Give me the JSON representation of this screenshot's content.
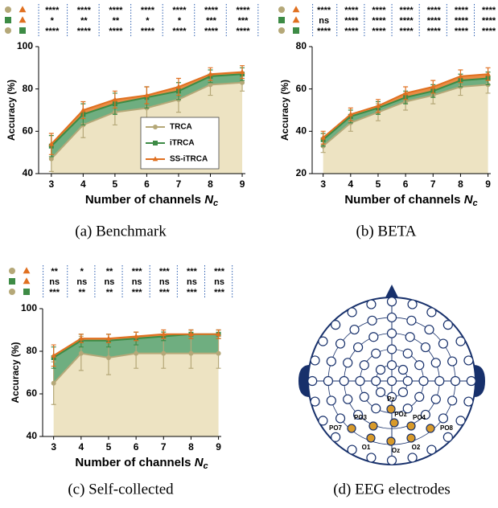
{
  "chart_data": [
    {
      "type": "line",
      "caption": "(a) Benchmark",
      "ylabel": "Accuracy (%)",
      "xlabel": "Number of channels",
      "xlabel_symbol": "N",
      "xlabel_subscript": "c",
      "x": [
        3,
        4,
        5,
        6,
        7,
        8,
        9
      ],
      "xlim": [
        2.6,
        9.1
      ],
      "xticks": [
        3,
        4,
        5,
        6,
        7,
        8,
        9
      ],
      "ylim": [
        40,
        100
      ],
      "yticks": [
        40,
        60,
        80,
        100
      ],
      "legend": "lower right",
      "series": [
        {
          "name": "TRCA",
          "color": "#b5a878",
          "marker": "circle",
          "values": [
            47,
            63,
            69,
            71,
            75,
            82,
            83
          ],
          "errors": [
            6,
            6,
            6,
            6,
            6,
            5,
            4
          ]
        },
        {
          "name": "iTRCA",
          "color": "#3d8b45",
          "marker": "square",
          "values": [
            53,
            68,
            73,
            76,
            79,
            86,
            87
          ],
          "errors": [
            5,
            5,
            5,
            5,
            4,
            3,
            3
          ]
        },
        {
          "name": "SS-iTRCA",
          "color": "#e07020",
          "marker": "triangle",
          "values": [
            54,
            70,
            75,
            77,
            81,
            87,
            88
          ],
          "errors": [
            5,
            4,
            4,
            4,
            4,
            3,
            3
          ]
        }
      ],
      "significance": [
        [
          "****",
          "****",
          "****",
          "****",
          "****",
          "****",
          "****"
        ],
        [
          "*",
          "**",
          "**",
          "*",
          "*",
          "***",
          "***"
        ],
        [
          "****",
          "****",
          "****",
          "****",
          "****",
          "****",
          "****"
        ]
      ]
    },
    {
      "type": "line",
      "caption": "(b) BETA",
      "ylabel": "Accuracy (%)",
      "xlabel": "Number of channels",
      "xlabel_symbol": "N",
      "xlabel_subscript": "c",
      "x": [
        3,
        4,
        5,
        6,
        7,
        8,
        9
      ],
      "xlim": [
        2.6,
        9.1
      ],
      "xticks": [
        3,
        4,
        5,
        6,
        7,
        8,
        9
      ],
      "ylim": [
        20,
        80
      ],
      "yticks": [
        20,
        40,
        60,
        80
      ],
      "series": [
        {
          "color": "#b5a878",
          "marker": "circle",
          "values": [
            33,
            44,
            49,
            54,
            57,
            61,
            62
          ],
          "errors": [
            3,
            4,
            4,
            4,
            4,
            4,
            4
          ]
        },
        {
          "color": "#3d8b45",
          "marker": "square",
          "values": [
            36,
            47,
            51,
            56,
            59,
            64,
            65
          ],
          "errors": [
            3,
            3,
            3,
            3,
            3,
            3,
            3
          ]
        },
        {
          "color": "#e07020",
          "marker": "triangle",
          "values": [
            37,
            48,
            52,
            58,
            61,
            66,
            67
          ],
          "errors": [
            3,
            3,
            3,
            3,
            3,
            3,
            3
          ]
        }
      ],
      "significance": [
        [
          "****",
          "****",
          "****",
          "****",
          "****",
          "****",
          "****"
        ],
        [
          "ns",
          "****",
          "****",
          "****",
          "****",
          "****",
          "****"
        ],
        [
          "****",
          "****",
          "****",
          "****",
          "****",
          "****",
          "****"
        ]
      ]
    },
    {
      "type": "line",
      "caption": "(c) Self-collected",
      "ylabel": "Accuracy (%)",
      "xlabel": "Number of channels",
      "xlabel_symbol": "N",
      "xlabel_subscript": "c",
      "x": [
        3,
        4,
        5,
        6,
        7,
        8,
        9
      ],
      "xlim": [
        2.6,
        9.1
      ],
      "xticks": [
        3,
        4,
        5,
        6,
        7,
        8,
        9
      ],
      "ylim": [
        40,
        100
      ],
      "yticks": [
        40,
        60,
        80,
        100
      ],
      "series": [
        {
          "color": "#b5a878",
          "marker": "circle",
          "values": [
            65,
            79,
            77,
            79,
            79,
            79,
            79
          ],
          "errors": [
            10,
            8,
            8,
            7,
            7,
            7,
            7
          ]
        },
        {
          "color": "#3d8b45",
          "marker": "square",
          "values": [
            77,
            85,
            85,
            86,
            87,
            88,
            88
          ],
          "errors": [
            5,
            3,
            3,
            3,
            2,
            2,
            2
          ]
        },
        {
          "color": "#e07020",
          "marker": "triangle",
          "values": [
            78,
            86,
            86,
            87,
            88,
            88,
            88
          ],
          "errors": [
            5,
            2,
            2,
            2,
            2,
            2,
            2
          ]
        }
      ],
      "significance": [
        [
          "**",
          "*",
          "**",
          "***",
          "***",
          "***",
          "***"
        ],
        [
          "ns",
          "ns",
          "ns",
          "ns",
          "ns",
          "ns",
          "ns"
        ],
        [
          "***",
          "**",
          "**",
          "***",
          "***",
          "***",
          "***"
        ]
      ]
    }
  ],
  "eeg_diagram": {
    "caption": "(d) EEG electrodes",
    "electrodes": [
      {
        "label": "Pz"
      },
      {
        "label": "POz"
      },
      {
        "label": "PO3"
      },
      {
        "label": "PO4"
      },
      {
        "label": "PO7"
      },
      {
        "label": "PO8"
      },
      {
        "label": "O1"
      },
      {
        "label": "Oz"
      },
      {
        "label": "O2"
      }
    ]
  }
}
